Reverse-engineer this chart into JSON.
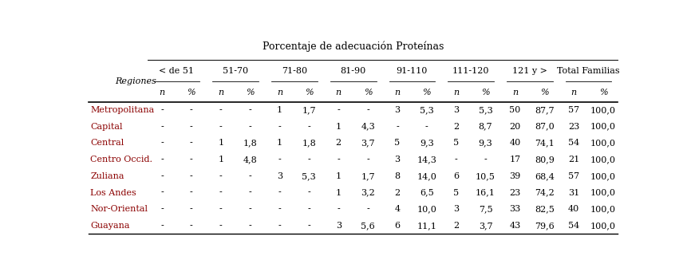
{
  "title": "Porcentaje de adecuación Proteínas",
  "col_groups": [
    "< de 51",
    "51-70",
    "71-80",
    "81-90",
    "91-110",
    "111-120",
    "121 y >",
    "Total Familias"
  ],
  "row_header": "Regiones",
  "regions": [
    "Metropolitana",
    "Capital",
    "Central",
    "Centro Occid.",
    "Zuliana",
    "Los Andes",
    "Nor-Oriental",
    "Guayana"
  ],
  "region_color": "#8B0000",
  "data": [
    [
      "-",
      "-",
      "-",
      "-",
      "1",
      "1,7",
      "-",
      "-",
      "3",
      "5,3",
      "3",
      "5,3",
      "50",
      "87,7",
      "57",
      "100,0"
    ],
    [
      "-",
      "-",
      "-",
      "-",
      "-",
      "-",
      "1",
      "4,3",
      "-",
      "-",
      "2",
      "8,7",
      "20",
      "87,0",
      "23",
      "100,0"
    ],
    [
      "-",
      "-",
      "1",
      "1,8",
      "1",
      "1,8",
      "2",
      "3,7",
      "5",
      "9,3",
      "5",
      "9,3",
      "40",
      "74,1",
      "54",
      "100,0"
    ],
    [
      "-",
      "-",
      "1",
      "4,8",
      "-",
      "-",
      "-",
      "-",
      "3",
      "14,3",
      "-",
      "-",
      "17",
      "80,9",
      "21",
      "100,0"
    ],
    [
      "-",
      "-",
      "-",
      "-",
      "3",
      "5,3",
      "1",
      "1,7",
      "8",
      "14,0",
      "6",
      "10,5",
      "39",
      "68,4",
      "57",
      "100,0"
    ],
    [
      "-",
      "-",
      "-",
      "-",
      "-",
      "-",
      "1",
      "3,2",
      "2",
      "6,5",
      "5",
      "16,1",
      "23",
      "74,2",
      "31",
      "100,0"
    ],
    [
      "-",
      "-",
      "-",
      "-",
      "-",
      "-",
      "-",
      "-",
      "4",
      "10,0",
      "3",
      "7,5",
      "33",
      "82,5",
      "40",
      "100,0"
    ],
    [
      "-",
      "-",
      "-",
      "-",
      "-",
      "-",
      "3",
      "5,6",
      "6",
      "11,1",
      "2",
      "3,7",
      "43",
      "79,6",
      "54",
      "100,0"
    ]
  ],
  "bg_color": "#ffffff",
  "text_color": "#000000",
  "header_fontsize": 8.0,
  "cell_fontsize": 8.0,
  "title_fontsize": 9.0
}
